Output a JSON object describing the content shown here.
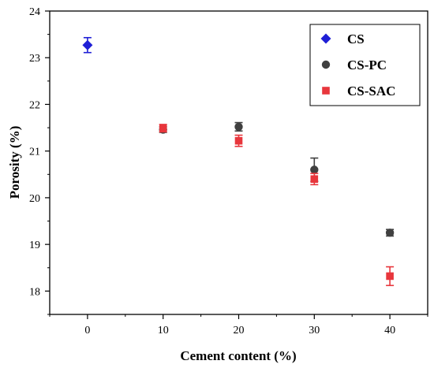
{
  "chart_data": {
    "type": "scatter",
    "xlabel": "Cement content (%)",
    "ylabel": "Porosity (%)",
    "xlim": [
      -5,
      45
    ],
    "ylim": [
      17.5,
      24
    ],
    "xticks": [
      0,
      10,
      20,
      30,
      40
    ],
    "yticks": [
      18,
      19,
      20,
      21,
      22,
      23,
      24
    ],
    "grid": false,
    "legend_position": "top-right",
    "series": [
      {
        "name": "CS",
        "marker": "diamond",
        "color": "#1f1fd6",
        "points": [
          {
            "x": 0,
            "y": 23.27,
            "err": 0.16
          }
        ]
      },
      {
        "name": "CS-PC",
        "marker": "circle",
        "color": "#404040",
        "points": [
          {
            "x": 10,
            "y": 21.46,
            "err": 0.06
          },
          {
            "x": 20,
            "y": 21.52,
            "err": 0.09
          },
          {
            "x": 30,
            "y": 20.6,
            "err": 0.25
          },
          {
            "x": 40,
            "y": 19.25,
            "err": 0.07
          }
        ]
      },
      {
        "name": "CS-SAC",
        "marker": "square",
        "color": "#e8363c",
        "points": [
          {
            "x": 10,
            "y": 21.49,
            "err": 0.08
          },
          {
            "x": 20,
            "y": 21.22,
            "err": 0.12
          },
          {
            "x": 30,
            "y": 20.4,
            "err": 0.12
          },
          {
            "x": 40,
            "y": 18.32,
            "err": 0.2
          }
        ]
      }
    ]
  }
}
